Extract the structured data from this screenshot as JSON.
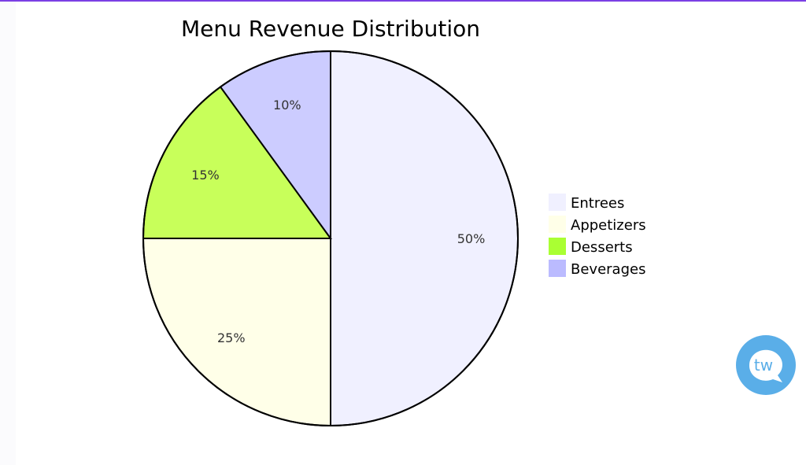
{
  "chart_data": {
    "type": "pie",
    "title": "Menu Revenue Distribution",
    "slices": [
      {
        "name": "Entrees",
        "value": 50,
        "label": "50%",
        "color": "#f0f0ff"
      },
      {
        "name": "Appetizers",
        "value": 25,
        "label": "25%",
        "color": "#ffffe8"
      },
      {
        "name": "Desserts",
        "value": 15,
        "label": "15%",
        "color": "#c8ff5a",
        "legend_color": "#aaff33"
      },
      {
        "name": "Beverages",
        "value": 10,
        "label": "10%",
        "color": "#ccccff",
        "legend_color": "#bbbbff"
      }
    ],
    "start": "top",
    "direction": "clockwise",
    "legend_position": "right"
  },
  "badge": {
    "text": "tw",
    "icon": "chat-bubble-logo-icon",
    "color": "#5aaee8"
  }
}
